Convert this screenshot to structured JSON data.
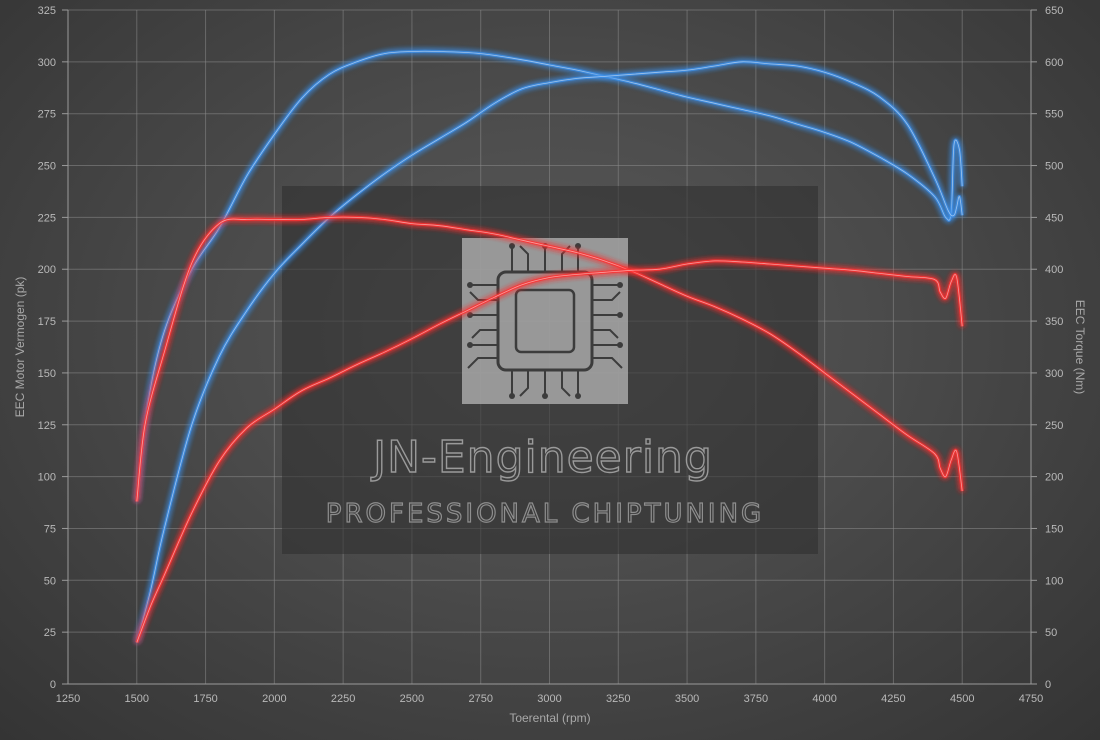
{
  "chart_data": {
    "type": "line",
    "xlabel": "Toerental (rpm)",
    "ylabel_left": "EEC Motor Vermogen (pk)",
    "ylabel_right": "EEC Torque (Nm)",
    "xlim": [
      1250,
      4750
    ],
    "xticks": [
      1250,
      1500,
      1750,
      2000,
      2250,
      2500,
      2750,
      3000,
      3250,
      3500,
      3750,
      4000,
      4250,
      4500,
      4750
    ],
    "ylim_left": [
      0,
      325
    ],
    "yticks_left": [
      0,
      25,
      50,
      75,
      100,
      125,
      150,
      175,
      200,
      225,
      250,
      275,
      300,
      325
    ],
    "ylim_right": [
      0,
      650
    ],
    "yticks_right": [
      0,
      50,
      100,
      150,
      200,
      250,
      300,
      350,
      400,
      450,
      500,
      550,
      600,
      650
    ],
    "grid": true,
    "series": [
      {
        "axis": "right",
        "color": "#3d8fe8",
        "x": [
          1500,
          1540,
          1600,
          1700,
          1800,
          1900,
          2000,
          2100,
          2200,
          2300,
          2400,
          2500,
          2600,
          2750,
          2900,
          3000,
          3100,
          3200,
          3300,
          3400,
          3500,
          3600,
          3700,
          3800,
          3900,
          4000,
          4100,
          4200,
          4300,
          4400,
          4440,
          4460,
          4470,
          4490,
          4500
        ],
        "y": [
          176,
          270,
          340,
          400,
          440,
          490,
          530,
          565,
          588,
          600,
          608,
          610,
          610,
          608,
          602,
          597,
          592,
          586,
          580,
          573,
          566,
          560,
          554,
          548,
          540,
          532,
          522,
          508,
          492,
          470,
          450,
          455,
          520,
          515,
          480
        ]
      },
      {
        "axis": "left",
        "color": "#3d8fe8",
        "x": [
          1500,
          1550,
          1600,
          1700,
          1800,
          1900,
          2000,
          2100,
          2200,
          2300,
          2400,
          2500,
          2600,
          2700,
          2800,
          2900,
          3000,
          3100,
          3200,
          3300,
          3400,
          3500,
          3600,
          3700,
          3800,
          3900,
          4000,
          4100,
          4200,
          4300,
          4400,
          4450,
          4470,
          4480,
          4490,
          4500
        ],
        "y": [
          20,
          45,
          75,
          125,
          158,
          180,
          198,
          212,
          225,
          236,
          246,
          255,
          263,
          271,
          280,
          287,
          290,
          292,
          293,
          294,
          295,
          296,
          298,
          300,
          299,
          298,
          295,
          290,
          283,
          270,
          244,
          228,
          226,
          230,
          235,
          226
        ]
      },
      {
        "axis": "left",
        "color": "#ff3030",
        "x": [
          1500,
          1530,
          1600,
          1700,
          1800,
          1900,
          2000,
          2100,
          2200,
          2300,
          2400,
          2500,
          2600,
          2700,
          2800,
          2900,
          3000,
          3100,
          3200,
          3300,
          3400,
          3500,
          3600,
          3700,
          3800,
          3900,
          4000,
          4100,
          4200,
          4300,
          4400,
          4420,
          4440,
          4460,
          4480,
          4500
        ],
        "y": [
          88,
          125,
          160,
          203,
          222,
          224,
          224,
          224,
          225,
          225,
          224,
          222,
          221,
          219,
          217,
          214,
          211,
          208,
          204,
          199,
          193,
          187,
          182,
          176,
          169,
          160,
          150,
          140,
          130,
          120,
          111,
          104,
          100,
          108,
          112,
          93
        ]
      },
      {
        "axis": "right",
        "color": "#ff3030",
        "x": [
          1500,
          1550,
          1600,
          1700,
          1800,
          1900,
          2000,
          2100,
          2200,
          2300,
          2400,
          2500,
          2600,
          2700,
          2800,
          2900,
          3000,
          3100,
          3200,
          3300,
          3400,
          3500,
          3600,
          3700,
          3800,
          3900,
          4000,
          4100,
          4200,
          4300,
          4400,
          4420,
          4440,
          4460,
          4480,
          4500
        ],
        "y": [
          40,
          75,
          105,
          165,
          215,
          247,
          265,
          283,
          295,
          308,
          320,
          333,
          347,
          360,
          373,
          385,
          392,
          395,
          397,
          399,
          400,
          405,
          408,
          407,
          405,
          403,
          401,
          399,
          396,
          393,
          390,
          378,
          372,
          388,
          392,
          345
        ]
      }
    ]
  },
  "watermark": {
    "title": "JN-Engineering",
    "subtitle": "PROFESSIONAL CHIPTUNING"
  }
}
